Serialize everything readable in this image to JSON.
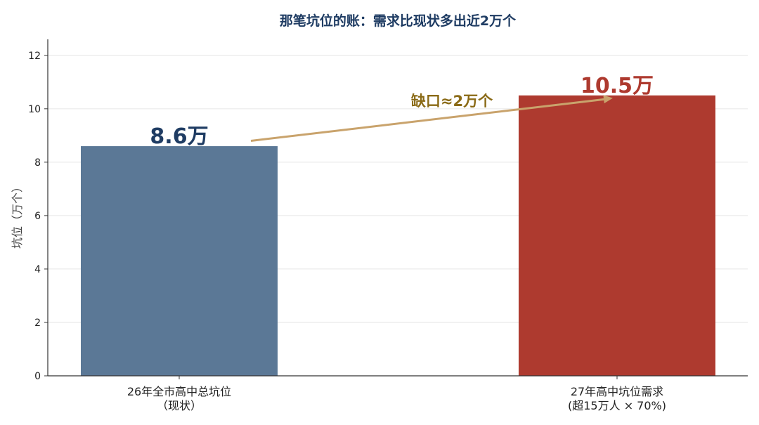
{
  "chart_data": {
    "type": "bar",
    "title": "那笔坑位的账：需求比现状多出近2万个",
    "ylabel": "坑位（万个）",
    "xlabel": "",
    "ylim": [
      0,
      12.6
    ],
    "yticks": [
      0,
      2,
      4,
      6,
      8,
      10,
      12
    ],
    "grid": true,
    "categories": [
      {
        "line1": "26年全市高中总坑位",
        "line2": "（现状）"
      },
      {
        "line1": "27年高中坑位需求",
        "line2": "(超15万人 × 70%)"
      }
    ],
    "values": [
      8.6,
      10.5
    ],
    "data_labels": [
      "8.6万",
      "10.5万"
    ],
    "colors": [
      "#5b7896",
      "#ae3a2f"
    ],
    "label_colors": [
      "#1f3c63",
      "#ae3a2f"
    ],
    "title_color": "#1f3c63",
    "annotation": {
      "text": "缺口≈2万个",
      "color": "#8a6a16",
      "arrow_color": "#c9a36c",
      "from_y": 8.8,
      "to_y": 10.4
    }
  }
}
